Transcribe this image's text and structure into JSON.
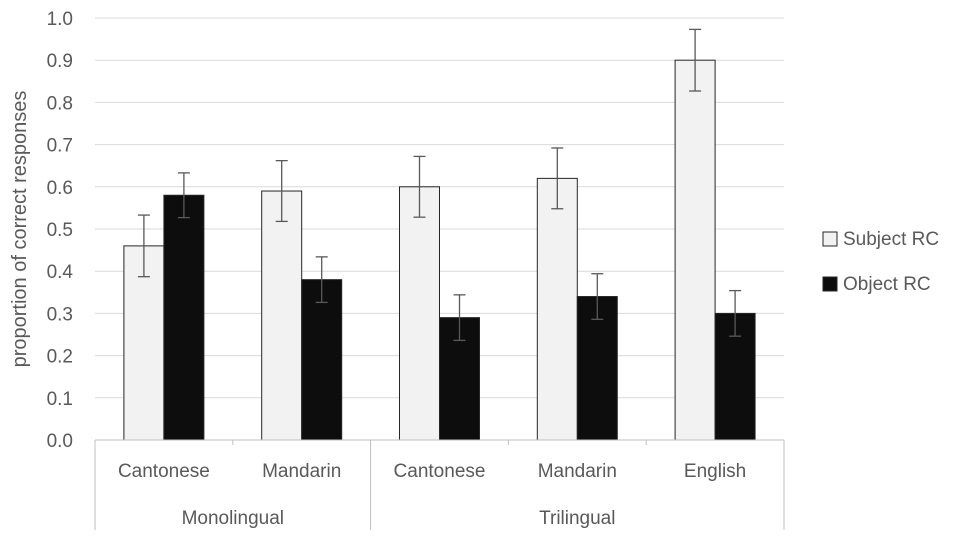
{
  "chart_data": {
    "type": "bar",
    "ylabel": "proportion of correct responses",
    "ylim": [
      0,
      1.0
    ],
    "y_ticks": [
      "0.0",
      "0.1",
      "0.2",
      "0.3",
      "0.4",
      "0.5",
      "0.6",
      "0.7",
      "0.8",
      "0.9",
      "1.0"
    ],
    "grid": true,
    "legend_position": "right",
    "groups": [
      {
        "label": "Monolingual",
        "categories": [
          "Cantonese",
          "Mandarin"
        ]
      },
      {
        "label": "Trilingual",
        "categories": [
          "Cantonese",
          "Mandarin",
          "English"
        ]
      }
    ],
    "series": [
      {
        "name": "Subject RC",
        "color": "#f2f2f2",
        "values": [
          0.46,
          0.59,
          0.6,
          0.62,
          0.9
        ],
        "error": [
          0.073,
          0.072,
          0.072,
          0.072,
          0.073
        ]
      },
      {
        "name": "Object RC",
        "color": "#0d0d0d",
        "values": [
          0.58,
          0.38,
          0.29,
          0.34,
          0.3
        ],
        "error": [
          0.053,
          0.054,
          0.054,
          0.054,
          0.054
        ]
      }
    ]
  }
}
